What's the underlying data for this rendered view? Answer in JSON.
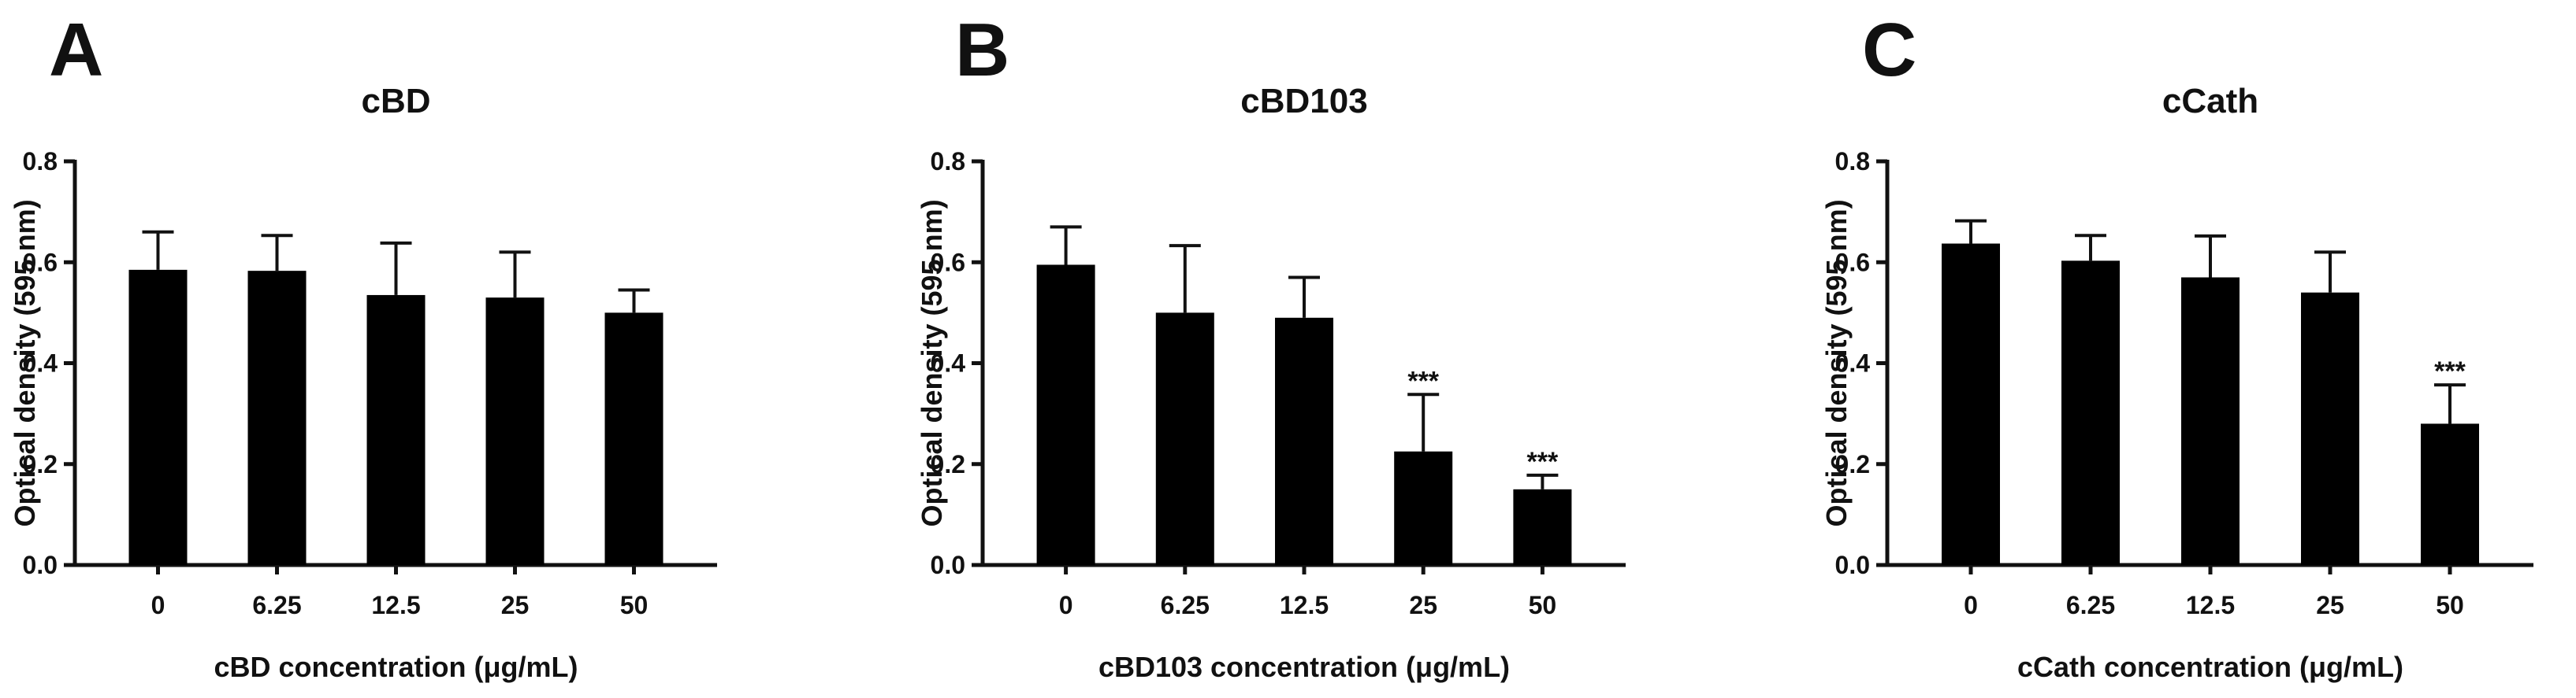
{
  "chart_data": [
    {
      "panel": "A",
      "type": "bar",
      "title": "cBD",
      "xlabel": "cBD concentration (μg/mL)",
      "ylabel": "Optical density (595 nm)",
      "categories": [
        "0",
        "6.25",
        "12.5",
        "25",
        "50"
      ],
      "values": [
        0.585,
        0.583,
        0.535,
        0.53,
        0.5
      ],
      "errors": [
        0.075,
        0.07,
        0.103,
        0.09,
        0.045
      ],
      "significance": [
        "",
        "",
        "",
        "",
        ""
      ],
      "ylim": [
        0,
        0.8
      ],
      "yticks": [
        "0.0",
        "0.2",
        "0.4",
        "0.6",
        "0.8"
      ],
      "grid": false,
      "bar_color": "#000000"
    },
    {
      "panel": "B",
      "type": "bar",
      "title": "cBD103",
      "xlabel": "cBD103 concentration (μg/mL)",
      "ylabel": "Optical density (595 nm)",
      "categories": [
        "0",
        "6.25",
        "12.5",
        "25",
        "50"
      ],
      "values": [
        0.595,
        0.5,
        0.49,
        0.225,
        0.15
      ],
      "errors": [
        0.075,
        0.133,
        0.08,
        0.113,
        0.028
      ],
      "significance": [
        "",
        "",
        "",
        "***",
        "***"
      ],
      "ylim": [
        0,
        0.8
      ],
      "yticks": [
        "0.0",
        "0.2",
        "0.4",
        "0.6",
        "0.8"
      ],
      "grid": false,
      "bar_color": "#000000"
    },
    {
      "panel": "C",
      "type": "bar",
      "title": "cCath",
      "xlabel": "cCath concentration (μg/mL)",
      "ylabel": "Optical density (595 nm)",
      "categories": [
        "0",
        "6.25",
        "12.5",
        "25",
        "50"
      ],
      "values": [
        0.637,
        0.603,
        0.57,
        0.54,
        0.28
      ],
      "errors": [
        0.045,
        0.05,
        0.082,
        0.08,
        0.077
      ],
      "significance": [
        "",
        "",
        "",
        "",
        "***"
      ],
      "ylim": [
        0,
        0.8
      ],
      "yticks": [
        "0.0",
        "0.2",
        "0.4",
        "0.6",
        "0.8"
      ],
      "grid": false,
      "bar_color": "#000000"
    }
  ]
}
